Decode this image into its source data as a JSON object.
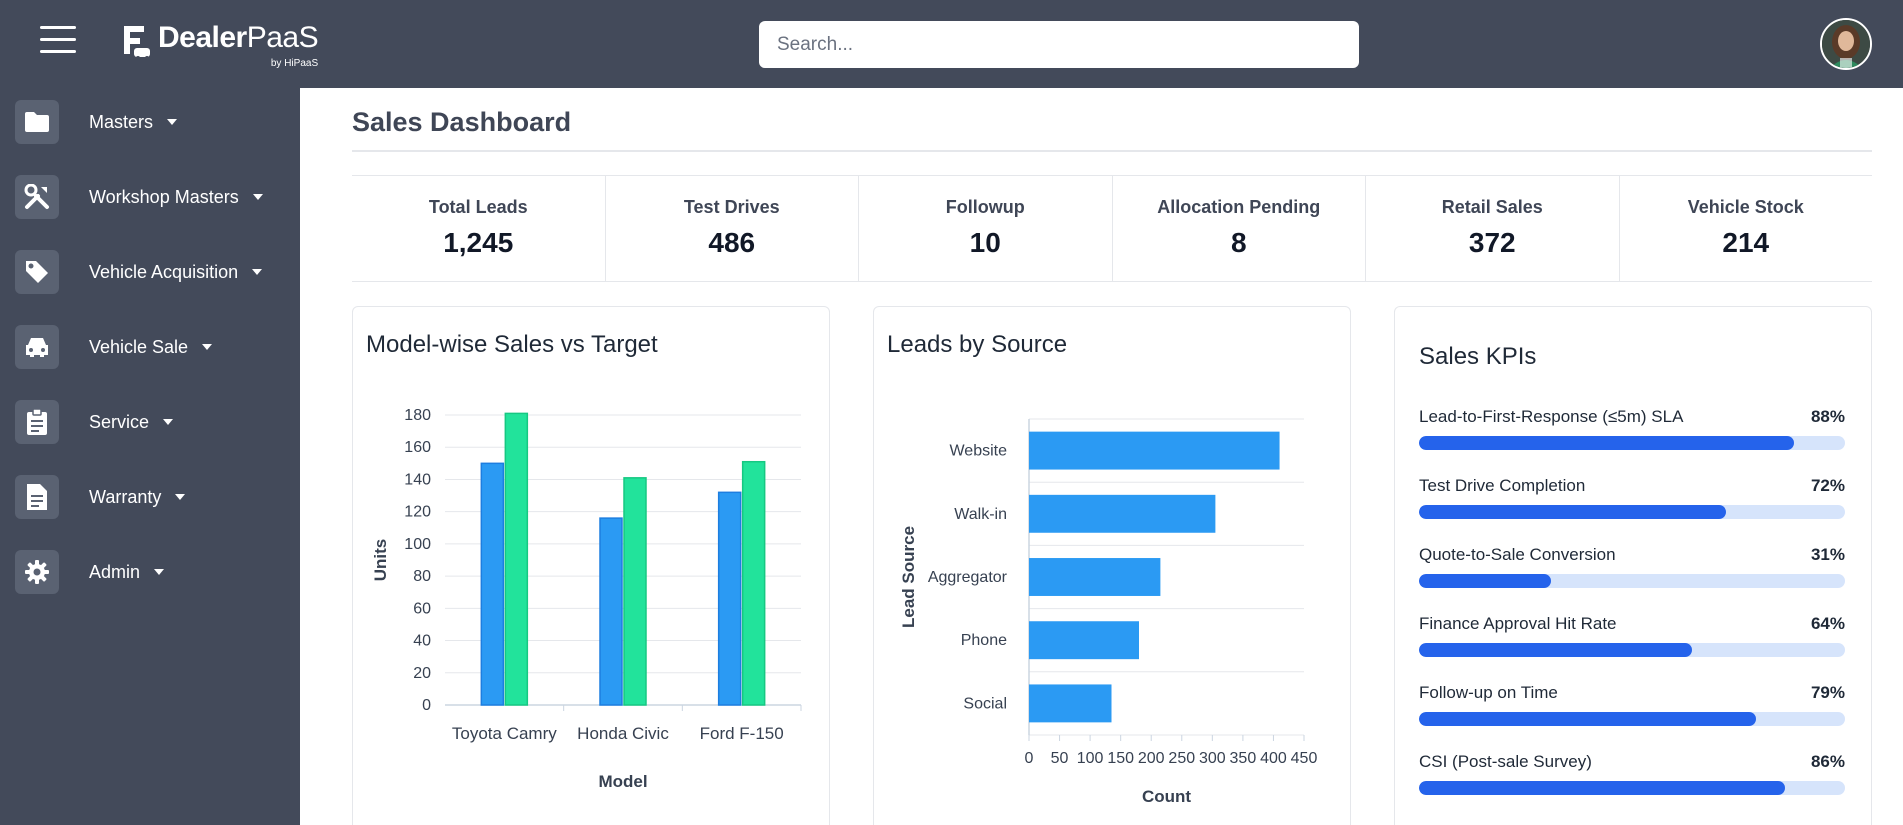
{
  "app": {
    "brand": "DealerPaaS",
    "brand_bold": "Dealer",
    "brand_light": "PaaS",
    "brand_sub": "by HiPaaS"
  },
  "header": {
    "search_placeholder": "Search...",
    "colors": {
      "bar": "#434a5a"
    }
  },
  "sidebar": {
    "items": [
      {
        "label": "Masters",
        "icon": "folder-icon"
      },
      {
        "label": "Workshop Masters",
        "icon": "tools-icon"
      },
      {
        "label": "Vehicle Acquisition",
        "icon": "tag-icon"
      },
      {
        "label": "Vehicle Sale",
        "icon": "car-icon"
      },
      {
        "label": "Service",
        "icon": "clipboard-icon"
      },
      {
        "label": "Warranty",
        "icon": "document-icon"
      },
      {
        "label": "Admin",
        "icon": "gear-icon"
      }
    ]
  },
  "main": {
    "title": "Sales Dashboard",
    "stats": [
      {
        "label": "Total Leads",
        "value": "1,245"
      },
      {
        "label": "Test Drives",
        "value": "486"
      },
      {
        "label": "Followup",
        "value": "10"
      },
      {
        "label": "Allocation Pending",
        "value": "8"
      },
      {
        "label": "Retail Sales",
        "value": "372"
      },
      {
        "label": "Vehicle Stock",
        "value": "214"
      }
    ]
  },
  "chart_data": [
    {
      "type": "bar",
      "title": "Model-wise Sales vs Target",
      "categories": [
        "Toyota Camry",
        "Honda Civic",
        "Ford F-150"
      ],
      "series": [
        {
          "values": [
            150,
            116,
            132
          ],
          "color": "#2b9af3"
        },
        {
          "values": [
            181,
            141,
            151
          ],
          "color": "#22e39b"
        }
      ],
      "xlabel": "Model",
      "ylabel": "Units",
      "ylim": [
        0,
        180
      ],
      "yticks": [
        0,
        20,
        40,
        60,
        80,
        100,
        120,
        140,
        160,
        180
      ],
      "grid": true
    },
    {
      "type": "bar",
      "orientation": "horizontal",
      "title": "Leads by Source",
      "categories": [
        "Website",
        "Walk-in",
        "Aggregator",
        "Phone",
        "Social"
      ],
      "values": [
        410,
        305,
        215,
        180,
        135
      ],
      "color": "#2b9af3",
      "xlabel": "Count",
      "ylabel": "Lead Source",
      "xlim": [
        0,
        450
      ],
      "xticks": [
        0,
        50,
        100,
        150,
        200,
        250,
        300,
        350,
        400,
        450
      ],
      "grid": true
    }
  ],
  "kpis": {
    "title": "Sales KPIs",
    "items": [
      {
        "label": "Lead-to-First-Response (≤5m) SLA",
        "value": "88%",
        "fraction": 0.88
      },
      {
        "label": "Test Drive Completion",
        "value": "72%",
        "fraction": 0.72
      },
      {
        "label": "Quote-to-Sale Conversion",
        "value": "31%",
        "fraction": 0.31
      },
      {
        "label": "Finance Approval Hit Rate",
        "value": "64%",
        "fraction": 0.64
      },
      {
        "label": "Follow-up on Time",
        "value": "79%",
        "fraction": 0.79
      },
      {
        "label": "CSI (Post-sale Survey)",
        "value": "86%",
        "fraction": 0.86
      }
    ]
  }
}
